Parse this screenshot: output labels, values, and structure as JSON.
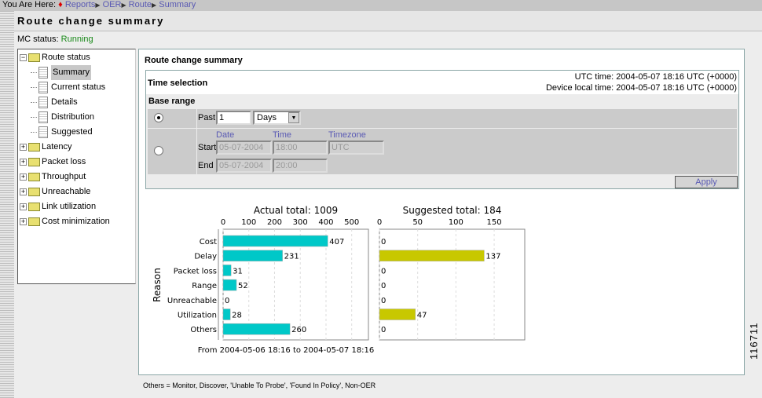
{
  "breadcrumb": {
    "prefix": "You Are Here:",
    "items": [
      "Reports",
      "OER",
      "Route",
      "Summary"
    ]
  },
  "page_title": "Route change summary",
  "mc_status": {
    "label": "MC status:",
    "value": "Running"
  },
  "tree": {
    "route_status": "Route status",
    "children": [
      "Summary",
      "Current status",
      "Details",
      "Distribution",
      "Suggested"
    ],
    "folders": [
      "Latency",
      "Packet loss",
      "Throughput",
      "Unreachable",
      "Link utilization",
      "Cost minimization"
    ]
  },
  "panel": {
    "title": "Route change summary",
    "time_selection": "Time selection",
    "utc_time": "UTC time: 2004-05-07 18:16 UTC (+0000)",
    "device_time": "Device local time: 2004-05-07 18:16 UTC (+0000)",
    "base_range": "Base range",
    "past_label": "Past",
    "past_value": "1",
    "past_unit": "Days",
    "col_date": "Date",
    "col_time": "Time",
    "col_tz": "Timezone",
    "start_label": "Start",
    "end_label": "End",
    "start_date": "05-07-2004",
    "start_time": "18:00",
    "start_tz": "UTC",
    "end_date": "05-07-2004",
    "end_time": "20:00",
    "apply": "Apply"
  },
  "chart_data": [
    {
      "type": "bar",
      "title": "Actual total:  1009",
      "ylabel": "Reason",
      "categories": [
        "Cost",
        "Delay",
        "Packet loss",
        "Range",
        "Unreachable",
        "Utilization",
        "Others"
      ],
      "values": [
        407,
        231,
        31,
        52,
        0,
        28,
        260
      ],
      "ticks": [
        0,
        100,
        200,
        300,
        400,
        500
      ],
      "xlim": [
        0,
        565
      ],
      "color": "#00c8c8",
      "xlabel": "From 2004-05-06 18:16 to 2004-05-07 18:16"
    },
    {
      "type": "bar",
      "title": "Suggested total:  184",
      "categories": [
        "Cost",
        "Delay",
        "Packet loss",
        "Range",
        "Unreachable",
        "Utilization",
        "Others"
      ],
      "values": [
        0,
        137,
        0,
        0,
        0,
        47,
        0
      ],
      "ticks": [
        0,
        50,
        100,
        150
      ],
      "xlim": [
        0,
        190
      ],
      "color": "#c8c800"
    }
  ],
  "note": "Others = Monitor, Discover, 'Unable To Probe', 'Found In Policy', Non-OER",
  "figure_id": "116711"
}
